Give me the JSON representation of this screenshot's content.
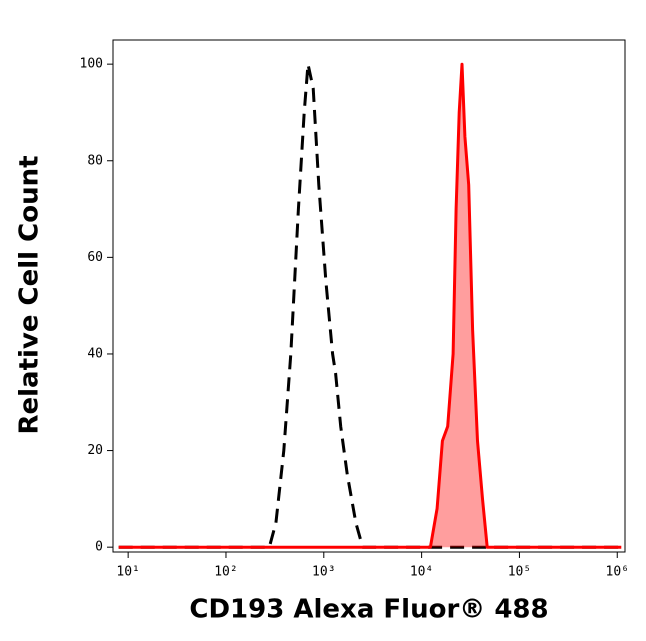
{
  "chart_data": {
    "type": "line",
    "x_label": "CD193 Alexa Fluor® 488",
    "y_label": "Relative Cell Count",
    "xscale": "log",
    "xlim": [
      7,
      1200000
    ],
    "ylim": [
      -1,
      105
    ],
    "xticks": [
      {
        "value": 10,
        "label": "10¹"
      },
      {
        "value": 100,
        "label": "10²"
      },
      {
        "value": 1000,
        "label": "10³"
      },
      {
        "value": 10000,
        "label": "10⁴"
      },
      {
        "value": 100000,
        "label": "10⁵"
      },
      {
        "value": 1000000,
        "label": "10⁶"
      }
    ],
    "yticks": [
      0,
      20,
      40,
      60,
      80,
      100
    ],
    "series": [
      {
        "color": "#000000",
        "dashed": true,
        "filled": false,
        "x": [
          8,
          277,
          324,
          390,
          460,
          550,
          630,
          690,
          780,
          890,
          1050,
          1230,
          1320,
          1490,
          1740,
          2130,
          2500,
          1100000
        ],
        "values": [
          0,
          0,
          5,
          20,
          40,
          70,
          90,
          100,
          95,
          75,
          55,
          40,
          36,
          25,
          15,
          5,
          0,
          0
        ]
      },
      {
        "color": "#ff0000",
        "dashed": false,
        "filled": true,
        "x": [
          8,
          12300,
          14400,
          16300,
          18500,
          21000,
          22500,
          24200,
          25900,
          27700,
          30300,
          33200,
          37300,
          41900,
          46800,
          1100000
        ],
        "values": [
          0,
          0,
          8,
          22,
          25,
          40,
          70,
          90,
          100,
          85,
          75,
          45,
          22,
          10,
          0,
          0
        ]
      }
    ]
  }
}
